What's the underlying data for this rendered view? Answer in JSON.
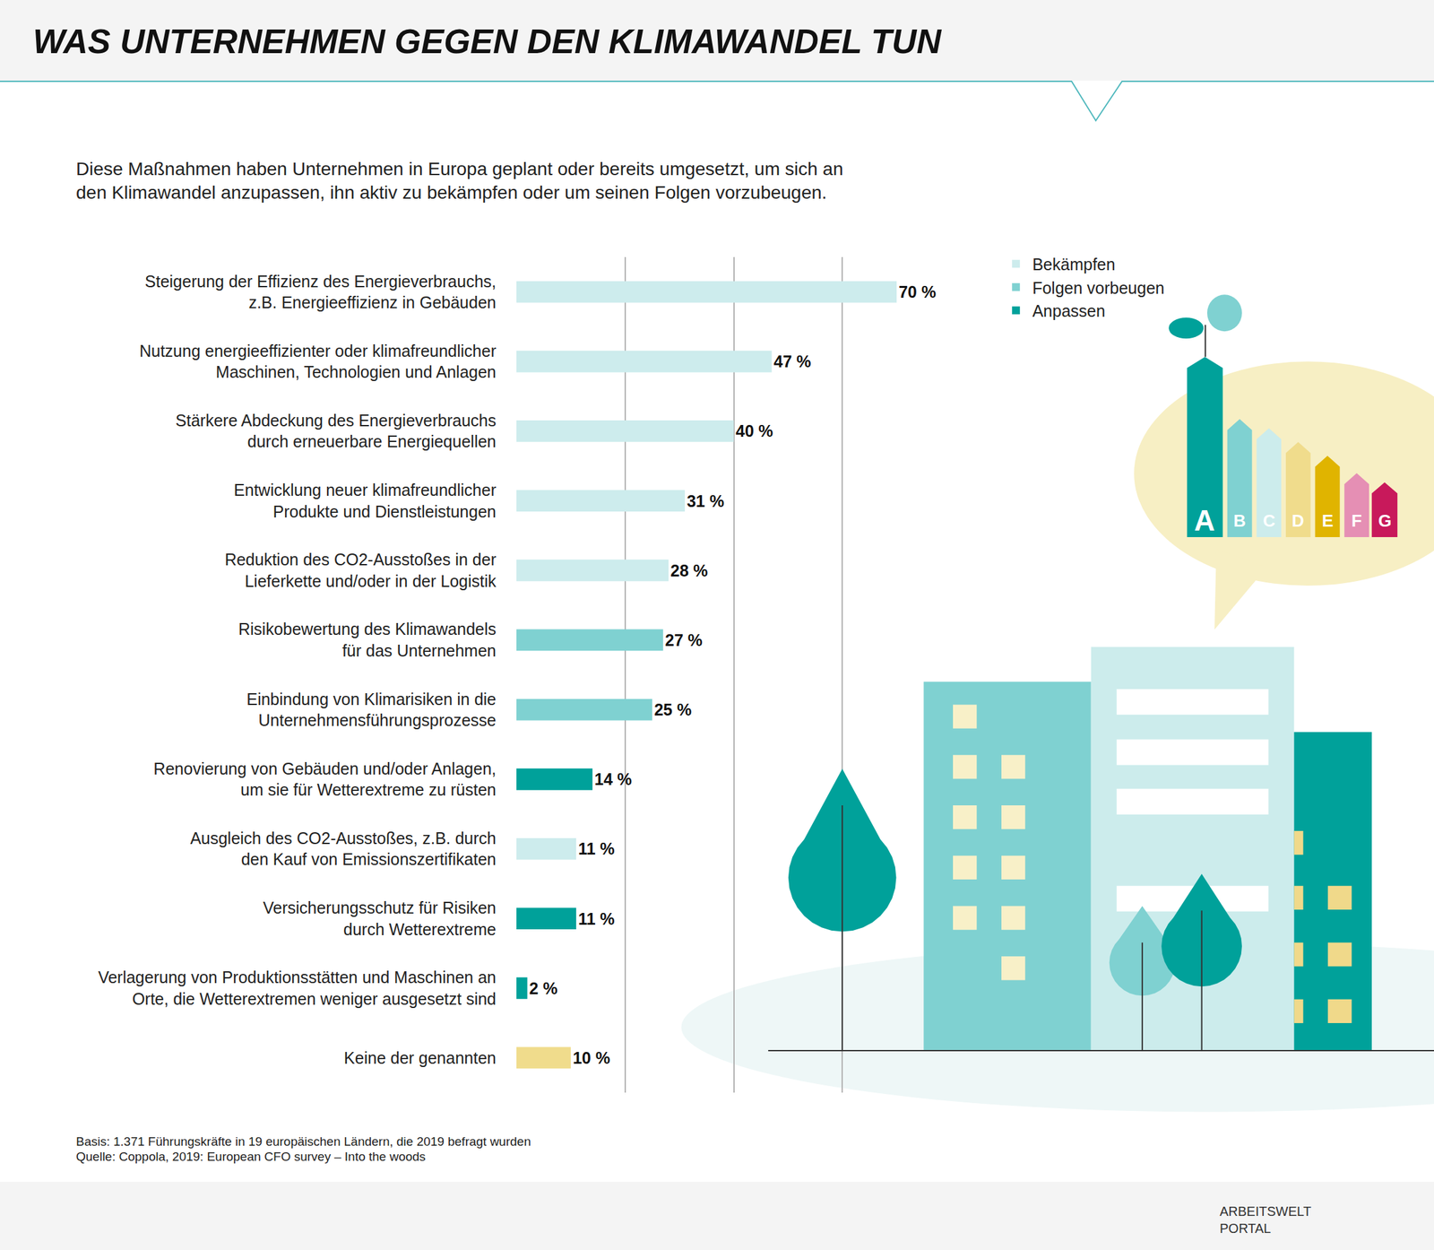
{
  "chart_data": {
    "type": "bar",
    "orientation": "horizontal",
    "title": "WAS UNTERNEHMEN GEGEN DEN KLIMAWANDEL TUN",
    "subtitle": "Diese Maßnahmen haben Unternehmen in Europa geplant oder bereits umgesetzt, um sich an\nden Klimawandel anzupassen, ihn aktiv zu bekämpfen oder um seinen Folgen vorzubeugen.",
    "categories": [
      "Steigerung der Effizienz des Energieverbrauchs,\nz.B. Energieeffizienz in Gebäuden",
      "Nutzung energieeffizienter oder klimafreundlicher\nMaschinen, Technologien und Anlagen",
      "Stärkere Abdeckung des Energieverbrauchs\ndurch erneuerbare Energiequellen",
      "Entwicklung neuer klimafreundlicher\nProdukte und Dienstleistungen",
      "Reduktion des CO2-Ausstoßes in der\nLieferkette und/oder in der Logistik",
      "Risikobewertung des Klimawandels\nfür das Unternehmen",
      "Einbindung von Klimarisiken in die\nUnternehmensführungsprozesse",
      "Renovierung von Gebäuden und/oder Anlagen,\num sie für Wetterextreme zu rüsten",
      "Ausgleich des CO2-Ausstoßes, z.B. durch\nden Kauf von Emissionszertifikaten",
      "Versicherungsschutz für Risiken\ndurch Wetterextreme",
      "Verlagerung von Produktionsstätten und Maschinen an\nOrte, die Wetterextremen weniger ausgesetzt sind",
      "Keine der genannten"
    ],
    "series": [
      {
        "name": "Bekämpfen",
        "color": "#cdeced",
        "values": [
          70,
          47,
          40,
          31,
          28,
          null,
          null,
          null,
          11,
          null,
          null,
          null
        ],
        "value_labels": [
          "70 %",
          "47 %",
          "40 %",
          "31 %",
          "28 %",
          null,
          null,
          null,
          "11 %",
          null,
          null,
          null
        ]
      },
      {
        "name": "Folgen vorbeugen",
        "color": "#7fd1d1",
        "values": [
          null,
          null,
          null,
          null,
          null,
          27,
          25,
          null,
          null,
          null,
          null,
          null
        ],
        "value_labels": [
          null,
          null,
          null,
          null,
          null,
          "27 %",
          "25 %",
          null,
          null,
          null,
          null,
          null
        ]
      },
      {
        "name": "Anpassen",
        "color": "#00a19a",
        "values": [
          null,
          null,
          null,
          null,
          null,
          null,
          null,
          14,
          null,
          11,
          2,
          null
        ],
        "value_labels": [
          null,
          null,
          null,
          null,
          null,
          null,
          null,
          "14 %",
          null,
          "11 %",
          "2 %",
          null
        ]
      },
      {
        "color": "#f0dc8c",
        "values": [
          null,
          null,
          null,
          null,
          null,
          null,
          null,
          null,
          null,
          null,
          null,
          10
        ],
        "value_labels": [
          null,
          null,
          null,
          null,
          null,
          null,
          null,
          null,
          null,
          null,
          null,
          "10 %"
        ]
      }
    ],
    "xlim": [
      0,
      80
    ],
    "xticks": [
      0,
      20,
      40,
      60,
      80
    ],
    "grid": true,
    "tick_labels": "y",
    "data_labels": true,
    "legend": "upper right",
    "notes": [
      "Basis: 1.371 Führungskräfte in 19 europäischen Ländern, die 2019 befragt wurden",
      "Quelle: Coppola, 2019: European CFO survey – Into the woods"
    ],
    "logo": "ARBEITSWELT\nPORTAL",
    "illustration_labels": [
      "A",
      "B",
      "C",
      "D",
      "E",
      "F",
      "G"
    ]
  }
}
